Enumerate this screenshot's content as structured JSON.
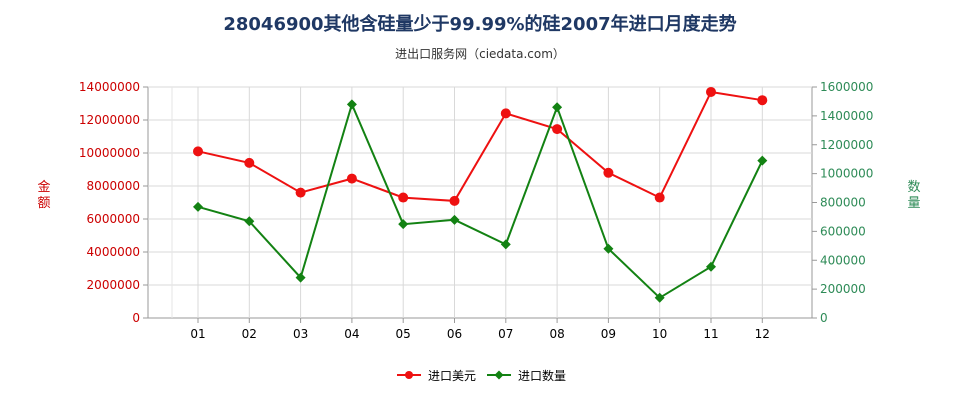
{
  "chart_data": {
    "type": "line",
    "title": "28046900其他含硅量少于99.99%的硅2007年进口月度走势",
    "subtitle": "进出口服务网（ciedata.com）",
    "ylabel_left": "金额",
    "ylabel_right": "数量",
    "categories": [
      "01",
      "02",
      "03",
      "04",
      "05",
      "06",
      "07",
      "08",
      "09",
      "10",
      "11",
      "12"
    ],
    "y_left": {
      "lim": [
        0,
        14000000
      ],
      "ticks": [
        "0",
        "2000000",
        "4000000",
        "6000000",
        "8000000",
        "10000000",
        "12000000",
        "14000000"
      ],
      "color": "#cc0000"
    },
    "y_right": {
      "lim": [
        0,
        1600000
      ],
      "ticks": [
        "0",
        "200000",
        "400000",
        "600000",
        "800000",
        "1000000",
        "1200000",
        "1400000",
        "1600000"
      ],
      "color": "#2e8b57"
    },
    "series": [
      {
        "name": "进口美元",
        "axis": "left",
        "color": "#ee1111",
        "marker": "circle",
        "values": [
          10100000,
          9400000,
          7600000,
          8450000,
          7300000,
          7100000,
          12400000,
          11450000,
          8800000,
          7300000,
          13700000,
          13200000
        ]
      },
      {
        "name": "进口数量",
        "axis": "right",
        "color": "#138213",
        "marker": "diamond",
        "values": [
          770000,
          670000,
          280000,
          1480000,
          650000,
          680000,
          510000,
          1460000,
          480000,
          140000,
          355000,
          1090000
        ]
      }
    ],
    "grid": true
  }
}
